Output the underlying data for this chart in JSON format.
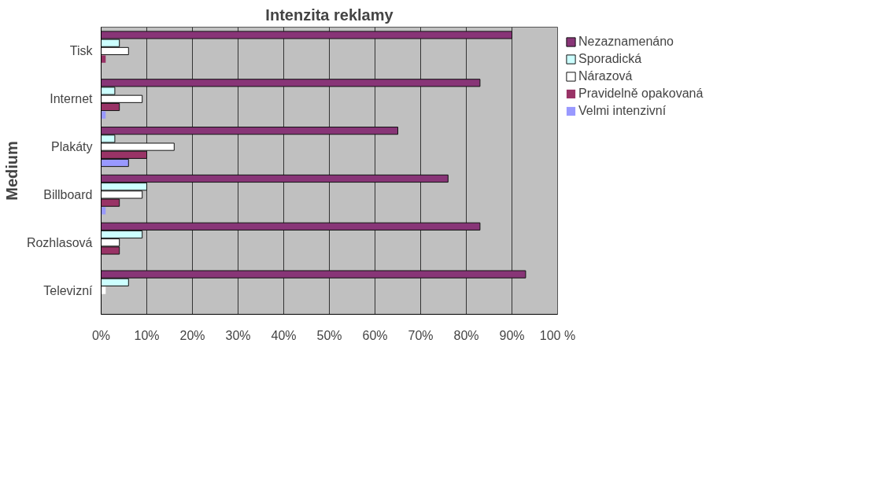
{
  "chart_data": {
    "type": "bar",
    "orientation": "horizontal",
    "title": "Intenzita reklamy",
    "ylabel": "Medium",
    "categories": [
      "Tisk",
      "Internet",
      "Plakáty",
      "Billboard",
      "Rozhlasová",
      "Televizní"
    ],
    "series": [
      {
        "name": "Nezaznamenáno",
        "color": "#883577",
        "values": [
          90,
          83,
          65,
          76,
          83,
          93
        ]
      },
      {
        "name": "Sporadická",
        "color": "#ccffff",
        "values": [
          4,
          3,
          3,
          10,
          9,
          6
        ]
      },
      {
        "name": "Nárazová",
        "color": "#ffffff",
        "values": [
          6,
          9,
          16,
          9,
          4,
          1
        ]
      },
      {
        "name": "Pravidelně opakovaná",
        "color": "#993366",
        "values": [
          1,
          4,
          10,
          4,
          4,
          0
        ]
      },
      {
        "name": "Velmi intenzivní",
        "color": "#9999ff",
        "values": [
          0,
          1,
          6,
          1,
          0,
          0
        ]
      }
    ],
    "xlim": [
      0,
      100
    ],
    "xticks": [
      {
        "value": 0,
        "label": "0%"
      },
      {
        "value": 10,
        "label": "10%"
      },
      {
        "value": 20,
        "label": "20%"
      },
      {
        "value": 30,
        "label": "30%"
      },
      {
        "value": 40,
        "label": "40%"
      },
      {
        "value": 50,
        "label": "50%"
      },
      {
        "value": 60,
        "label": "60%"
      },
      {
        "value": 70,
        "label": "70%"
      },
      {
        "value": 80,
        "label": "80%"
      },
      {
        "value": 90,
        "label": "90%"
      },
      {
        "value": 100,
        "label": "100 %"
      }
    ],
    "grid": "x",
    "legend": "top right"
  }
}
